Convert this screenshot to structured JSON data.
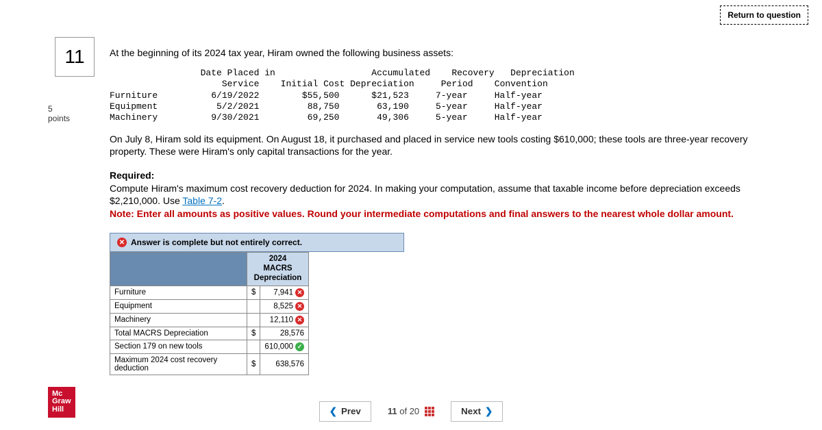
{
  "topbar": {
    "return_label": "Return to question"
  },
  "question": {
    "number": "11",
    "points_value": "5",
    "points_label": "points"
  },
  "intro": "At the beginning of its 2024 tax year, Hiram owned the following business assets:",
  "asset_table": {
    "headers": {
      "h1a": "Date Placed in",
      "h1b": "Service",
      "h2": "Initial Cost",
      "h3a": "Accumulated",
      "h3b": "Depreciation",
      "h4a": "Recovery",
      "h4b": "Period",
      "h5a": "Depreciation",
      "h5b": "Convention"
    },
    "rows": [
      {
        "name": "Furniture",
        "date": "6/19/2022",
        "cost": "$55,500",
        "accdep": "$21,523",
        "period": "7-year",
        "conv": "Half-year"
      },
      {
        "name": "Equipment",
        "date": "5/2/2021",
        "cost": "88,750",
        "accdep": "63,190",
        "period": "5-year",
        "conv": "Half-year"
      },
      {
        "name": "Machinery",
        "date": "9/30/2021",
        "cost": "69,250",
        "accdep": "49,306",
        "period": "5-year",
        "conv": "Half-year"
      }
    ]
  },
  "narrative": "On July 8, Hiram sold its equipment. On August 18, it purchased and placed in service new tools costing $610,000; these tools are three-year recovery property. These were Hiram's only capital transactions for the year.",
  "required": {
    "heading": "Required:",
    "line1a": "Compute Hiram's maximum cost recovery deduction for 2024. In making your computation, assume that taxable income before depreciation exceeds $2,210,000. Use ",
    "link": "Table 7-2",
    "line1b": ".",
    "note": "Note: Enter all amounts as positive values. Round your intermediate computations and final answers to the nearest whole dollar amount."
  },
  "banner": "Answer is complete but not entirely correct.",
  "answer_table": {
    "col_header": "2024\nMACRS\nDepreciation",
    "rows": [
      {
        "label": "Furniture",
        "cur": "$",
        "val": "7,941",
        "mark": "wrong"
      },
      {
        "label": "Equipment",
        "cur": "",
        "val": "8,525",
        "mark": "wrong"
      },
      {
        "label": "Machinery",
        "cur": "",
        "val": "12,110",
        "mark": "wrong"
      },
      {
        "label": "Total MACRS Depreciation",
        "cur": "$",
        "val": "28,576",
        "mark": ""
      },
      {
        "label": "Section 179 on new tools",
        "cur": "",
        "val": "610,000",
        "mark": "right"
      },
      {
        "label": "Maximum 2024 cost recovery deduction",
        "cur": "$",
        "val": "638,576",
        "mark": ""
      }
    ]
  },
  "nav": {
    "prev": "Prev",
    "pos_a": "11",
    "pos_of": "of",
    "pos_b": "20",
    "next": "Next"
  },
  "logo": {
    "l1": "Mc",
    "l2": "Graw",
    "l3": "Hill"
  }
}
